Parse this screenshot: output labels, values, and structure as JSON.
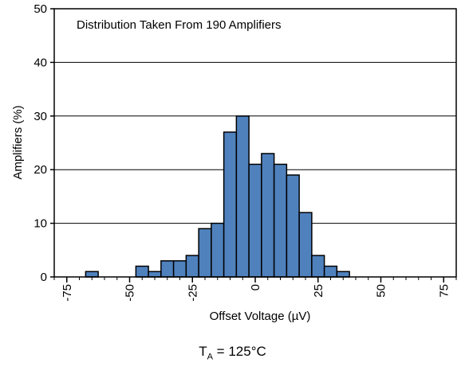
{
  "chart_data": {
    "type": "bar",
    "annotation": "Distribution Taken From 190 Amplifiers",
    "xlabel": "Offset Voltage (µV)",
    "ylabel": "Amplifiers (%)",
    "xlim": [
      -80,
      80
    ],
    "ylim": [
      0,
      50
    ],
    "x_ticks": [
      -75,
      -50,
      -25,
      0,
      25,
      50,
      75
    ],
    "y_ticks": [
      0,
      10,
      20,
      30,
      40,
      50
    ],
    "bin_width": 5,
    "bins": [
      {
        "x": -65,
        "value": 1
      },
      {
        "x": -45,
        "value": 2
      },
      {
        "x": -40,
        "value": 1
      },
      {
        "x": -35,
        "value": 3
      },
      {
        "x": -30,
        "value": 3
      },
      {
        "x": -25,
        "value": 4
      },
      {
        "x": -20,
        "value": 9
      },
      {
        "x": -15,
        "value": 10
      },
      {
        "x": -10,
        "value": 27
      },
      {
        "x": -5,
        "value": 30
      },
      {
        "x": 0,
        "value": 21
      },
      {
        "x": 5,
        "value": 23
      },
      {
        "x": 10,
        "value": 21
      },
      {
        "x": 15,
        "value": 19
      },
      {
        "x": 20,
        "value": 12
      },
      {
        "x": 25,
        "value": 4
      },
      {
        "x": 30,
        "value": 2
      },
      {
        "x": 35,
        "value": 1
      }
    ],
    "bar_color": "#4f81bd",
    "bar_edge_color": "#000000",
    "grid": "horizontal"
  },
  "caption": {
    "prefix": "T",
    "subscript": "A",
    "suffix": " = 125°C"
  }
}
